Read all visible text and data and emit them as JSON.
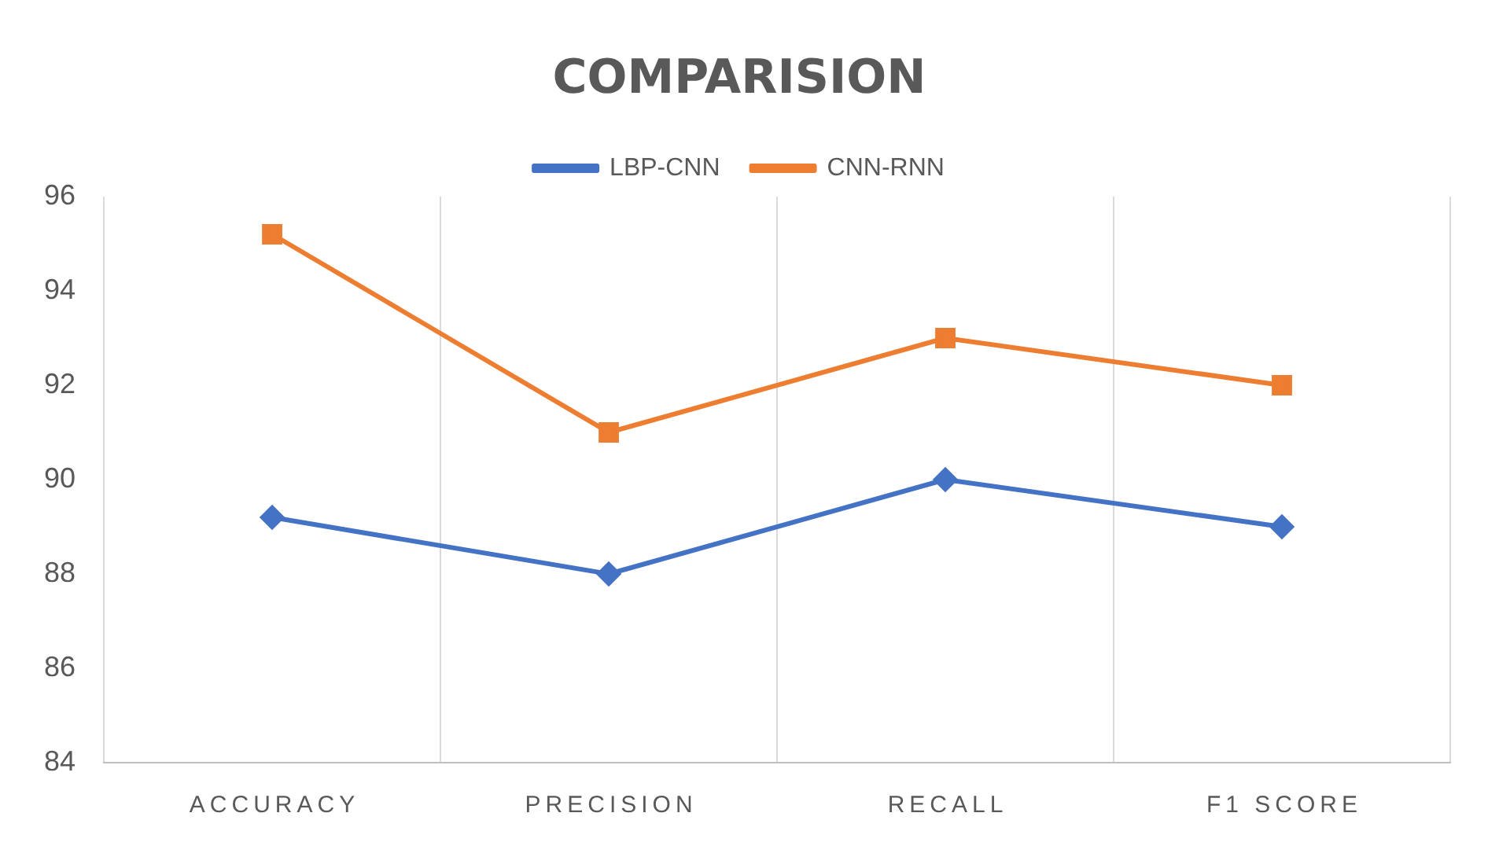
{
  "chart_data": {
    "type": "line",
    "title": "COMPARISION",
    "categories": [
      "ACCURACY",
      "PRECISION",
      "RECALL",
      "F1 SCORE"
    ],
    "series": [
      {
        "name": "LBP-CNN",
        "color": "#4472c4",
        "marker": "diamond",
        "values": [
          89.2,
          88,
          90,
          89
        ]
      },
      {
        "name": "CNN-RNN",
        "color": "#ed7d31",
        "marker": "square",
        "values": [
          95.2,
          91,
          93,
          92
        ]
      }
    ],
    "ylim": [
      84,
      96
    ],
    "yticks": [
      84,
      86,
      88,
      90,
      92,
      94,
      96
    ],
    "grid": "x",
    "legend": "top"
  }
}
